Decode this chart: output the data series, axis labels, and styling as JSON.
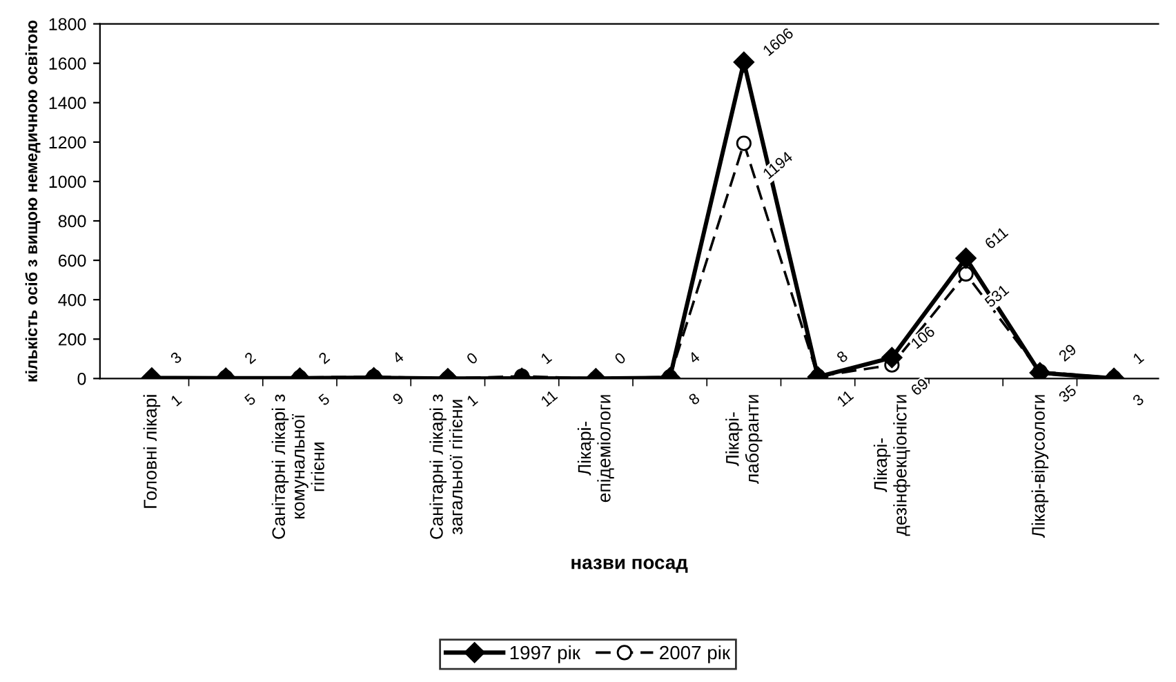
{
  "chart_data": {
    "type": "line",
    "xlabel": "назви посад",
    "ylabel": "кількість осіб з вищою немедичною освітою",
    "categories": [
      "Головні лікарі",
      null,
      "Санітарні лікарі з\nкомунальної\nгігієни",
      null,
      "Санітарні лікарі з\nзагальної гігієни",
      null,
      "Лікарі-\nепідеміологи",
      null,
      "Лікарі-\nлаборанти",
      null,
      "Лікарі-\nдезінфекціоністи",
      null,
      "Лікарі-вірусологи",
      null
    ],
    "series": [
      {
        "name": "1997 рік",
        "color": "#000000",
        "marker": "diamond",
        "line_style": "solid",
        "values": [
          3,
          2,
          2,
          4,
          0,
          1,
          0,
          4,
          1606,
          8,
          106,
          611,
          29,
          1
        ],
        "value_labels": [
          "3",
          "2",
          "2",
          "4",
          "0",
          "1",
          "0",
          "4",
          "1606",
          "8",
          "106",
          "611",
          "29",
          "1"
        ]
      },
      {
        "name": "2007 рік",
        "color": "#000000",
        "marker": "circle",
        "line_style": "dashed",
        "values": [
          1,
          5,
          5,
          9,
          1,
          11,
          0,
          8,
          1194,
          11,
          69,
          531,
          35,
          3
        ],
        "value_labels": [
          "1",
          "5",
          "5",
          "9",
          "1",
          "11",
          null,
          "8",
          "1194",
          "11",
          "69",
          "531",
          "35",
          "3"
        ]
      }
    ],
    "ylim": [
      0,
      1800
    ],
    "yticks": [
      0,
      200,
      400,
      600,
      800,
      1000,
      1200,
      1400,
      1600,
      1800
    ],
    "grid": false,
    "legend": "bottom"
  }
}
